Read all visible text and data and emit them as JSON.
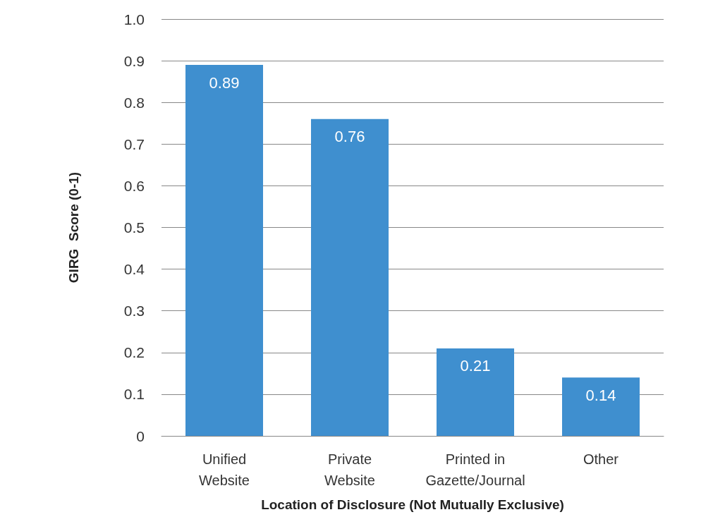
{
  "chart_data": {
    "type": "bar",
    "xlabel": "Location of Disclosure (Not Mutually Exclusive)",
    "ylabel": "GIRG  Score (0-1)",
    "categories": [
      "Unified\nWebsite",
      "Private\nWebsite",
      "Printed in\nGazette/Journal",
      "Other"
    ],
    "values": [
      0.89,
      0.76,
      0.21,
      0.14
    ],
    "color": "#3f8fcf",
    "data_labels": true,
    "ylim": [
      0,
      1
    ],
    "yticks": [
      0,
      0.1,
      0.2,
      0.3,
      0.4,
      0.5,
      0.6,
      0.7,
      0.8,
      0.9,
      {
        "value": 1,
        "label": "1.0"
      }
    ],
    "grid": "y"
  }
}
